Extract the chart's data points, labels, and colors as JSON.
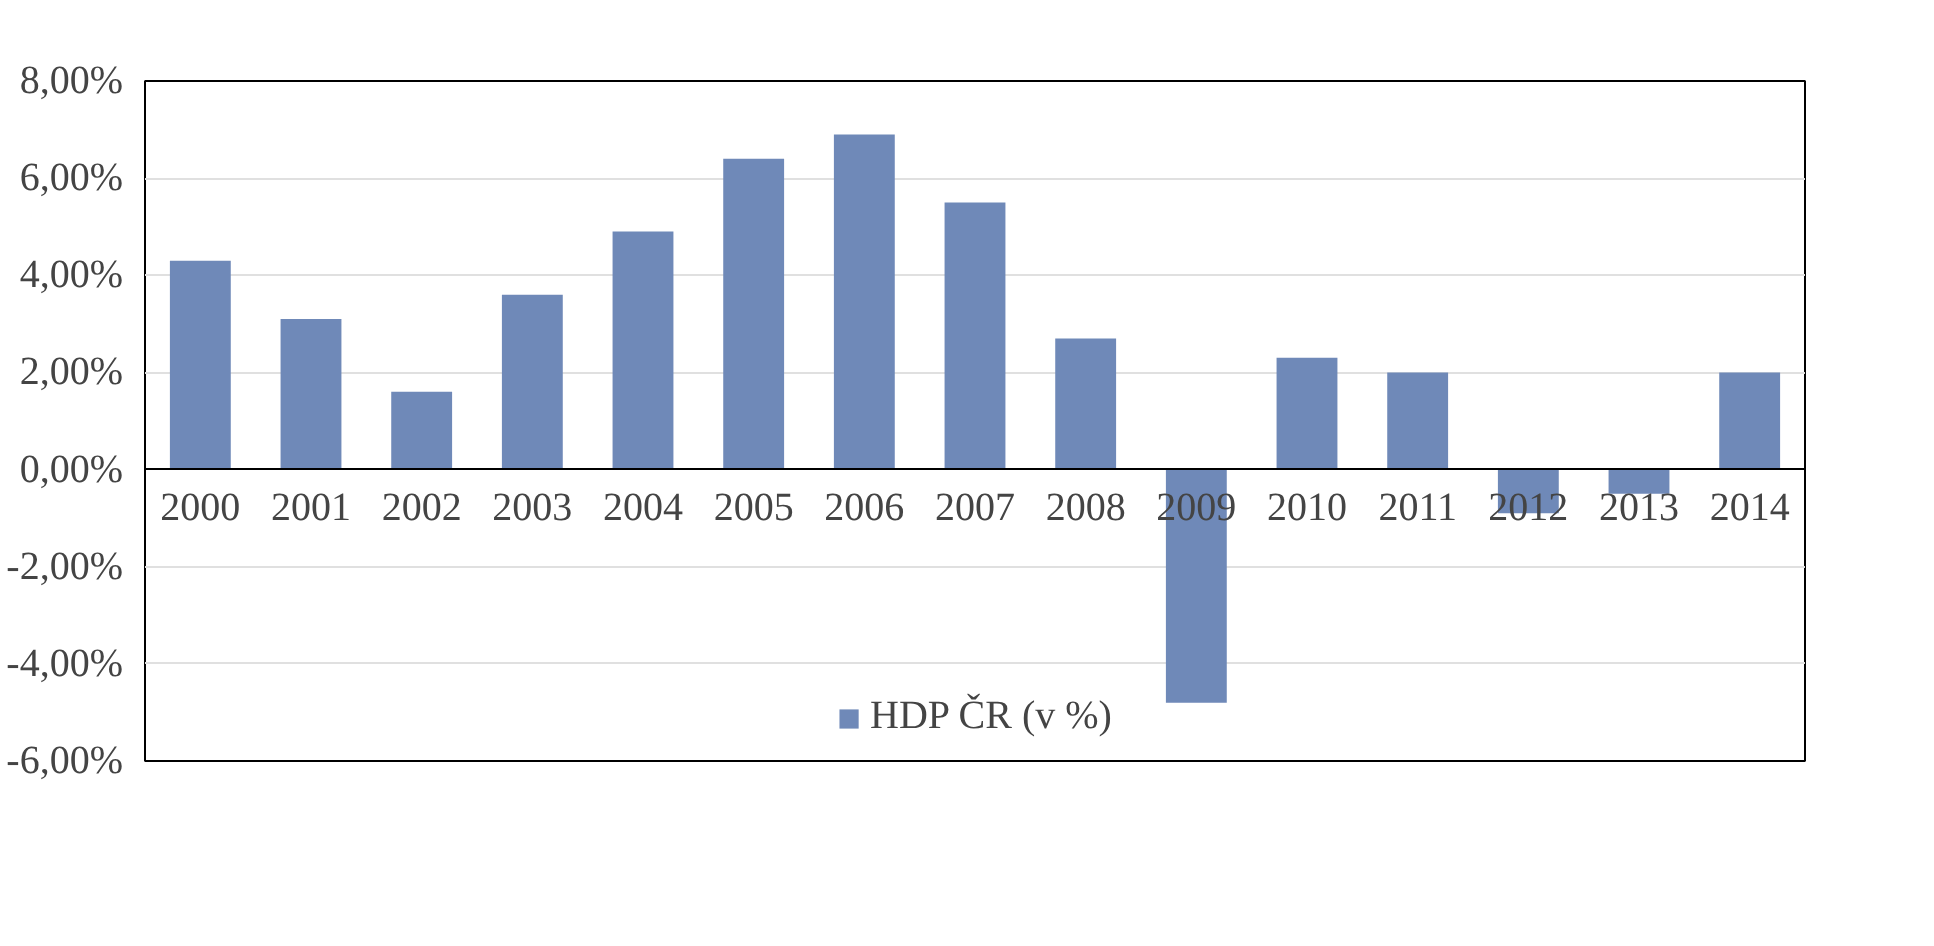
{
  "chart_data": {
    "type": "bar",
    "categories": [
      "2000",
      "2001",
      "2002",
      "2003",
      "2004",
      "2005",
      "2006",
      "2007",
      "2008",
      "2009",
      "2010",
      "2011",
      "2012",
      "2013",
      "2014"
    ],
    "series": [
      {
        "name": "HDP ČR (v %)",
        "color": "#6f89b8",
        "values": [
          4.3,
          3.1,
          1.6,
          3.6,
          4.9,
          6.4,
          6.9,
          5.5,
          2.7,
          -4.8,
          2.3,
          2.0,
          -0.9,
          -0.5,
          2.0
        ]
      }
    ],
    "ylim": [
      -6,
      8
    ],
    "yticks": [
      {
        "value": -6,
        "label": "-6,00%"
      },
      {
        "value": -4,
        "label": "-4,00%"
      },
      {
        "value": -2,
        "label": "-2,00%"
      },
      {
        "value": 0,
        "label": "0,00%"
      },
      {
        "value": 2,
        "label": "2,00%"
      },
      {
        "value": 4,
        "label": "4,00%"
      },
      {
        "value": 6,
        "label": "6,00%"
      },
      {
        "value": 8,
        "label": "8,00%"
      }
    ],
    "grid": "y",
    "legend": "bottom"
  }
}
